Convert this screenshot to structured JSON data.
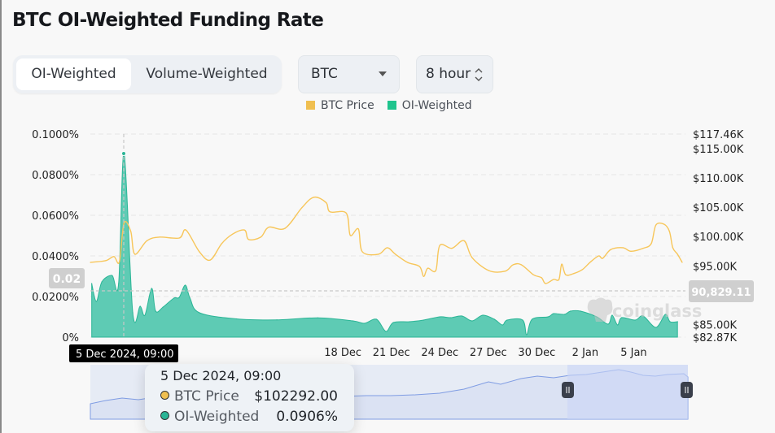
{
  "header": {
    "title": "BTC OI-Weighted Funding Rate"
  },
  "controls": {
    "tabs": [
      {
        "label": "OI-Weighted",
        "active": true
      },
      {
        "label": "Volume-Weighted",
        "active": false
      }
    ],
    "coin_select": {
      "value": "BTC"
    },
    "interval_select": {
      "value": "8 hour"
    }
  },
  "watermark": {
    "text": "coinglass"
  },
  "tooltip": {
    "date": "5 Dec 2024, 09:00",
    "rows": [
      {
        "label": "BTC Price",
        "value": "$102292.00",
        "color": "#f0bf50"
      },
      {
        "label": "OI-Weighted",
        "value": "0.0906%",
        "color": "#2bb596"
      }
    ]
  },
  "crosshair": {
    "x_label": "5 Dec 2024, 09:00",
    "y_left_label": "0.02",
    "y_right_label": "90,829.11"
  },
  "chart_data": {
    "type": "line+area",
    "legend": {
      "placement": "top-center",
      "entries": [
        {
          "name": "BTC Price",
          "color": "#f0bf50"
        },
        {
          "name": "OI-Weighted",
          "color": "#1fc48d"
        }
      ]
    },
    "xlim": [
      "2024-12-03 07:00",
      "2025-01-08 22:00"
    ],
    "x_ticks": [
      {
        "date": "2024-12-18",
        "label": "18 Dec"
      },
      {
        "date": "2024-12-21",
        "label": "21 Dec"
      },
      {
        "date": "2024-12-24",
        "label": "24 Dec"
      },
      {
        "date": "2024-12-27",
        "label": "27 Dec"
      },
      {
        "date": "2024-12-30",
        "label": "30 Dec"
      },
      {
        "date": "2025-01-02",
        "label": "2 Jan"
      },
      {
        "date": "2025-01-05",
        "label": "5 Jan"
      }
    ],
    "y_left": {
      "ylim": [
        0,
        0.1
      ],
      "ticks": [
        {
          "v": 0.1,
          "label": "0.1000%"
        },
        {
          "v": 0.08,
          "label": "0.0800%"
        },
        {
          "v": 0.06,
          "label": "0.0600%"
        },
        {
          "v": 0.04,
          "label": "0.0400%"
        },
        {
          "v": 0.02,
          "label": "0.0200%"
        },
        {
          "v": 0,
          "label": "0%"
        }
      ],
      "grid": true
    },
    "y_right": {
      "ylim": [
        82.87,
        117.46
      ],
      "unit": "K USD",
      "ticks": [
        {
          "v": 117.46,
          "label": "$117.46K"
        },
        {
          "v": 115,
          "label": "$115.00K"
        },
        {
          "v": 110,
          "label": "$110.00K"
        },
        {
          "v": 105,
          "label": "$105.00K"
        },
        {
          "v": 100,
          "label": "$100.00K"
        },
        {
          "v": 95,
          "label": "$95.00K"
        },
        {
          "v": 85,
          "label": "$85.00K"
        },
        {
          "v": 82.87,
          "label": "$82.87K"
        }
      ]
    },
    "series": [
      {
        "name": "BTC Price",
        "axis": "right",
        "type": "line",
        "color": "#f5c24c",
        "points": [
          [
            "2024-12-03 07:00",
            95.6
          ],
          [
            "2024-12-04 06:00",
            95.9
          ],
          [
            "2024-12-04 18:00",
            96.6
          ],
          [
            "2024-12-05 02:00",
            95.7
          ],
          [
            "2024-12-05 09:00",
            102.29
          ],
          [
            "2024-12-05 19:00",
            100.9
          ],
          [
            "2024-12-06 01:00",
            97.0
          ],
          [
            "2024-12-06 19:00",
            99.3
          ],
          [
            "2024-12-07 13:00",
            99.9
          ],
          [
            "2024-12-08 19:00",
            99.75
          ],
          [
            "2024-12-09 05:00",
            101.1
          ],
          [
            "2024-12-10 01:00",
            97.4
          ],
          [
            "2024-12-10 17:00",
            96.0
          ],
          [
            "2024-12-11 10:00",
            98.8
          ],
          [
            "2024-12-12 02:00",
            100.4
          ],
          [
            "2024-12-12 20:00",
            101.1
          ],
          [
            "2024-12-13 02:00",
            99.5
          ],
          [
            "2024-12-13 20:00",
            99.9
          ],
          [
            "2024-12-14 08:00",
            101.6
          ],
          [
            "2024-12-15 08:00",
            101.4
          ],
          [
            "2024-12-16 09:00",
            104.9
          ],
          [
            "2024-12-17 03:00",
            106.7
          ],
          [
            "2024-12-17 21:00",
            105.8
          ],
          [
            "2024-12-18 03:00",
            104.2
          ],
          [
            "2024-12-19 03:00",
            104.0
          ],
          [
            "2024-12-19 09:00",
            100.2
          ],
          [
            "2024-12-19 21:00",
            101.3
          ],
          [
            "2024-12-20 03:00",
            97.4
          ],
          [
            "2024-12-21 03:00",
            97.0
          ],
          [
            "2024-12-21 16:00",
            98.1
          ],
          [
            "2024-12-22 04:00",
            97.0
          ],
          [
            "2024-12-22 22:00",
            95.6
          ],
          [
            "2024-12-23 16:00",
            94.9
          ],
          [
            "2024-12-23 22:00",
            93.2
          ],
          [
            "2024-12-24 04:00",
            94.6
          ],
          [
            "2024-12-24 16:00",
            94.2
          ],
          [
            "2024-12-24 22:00",
            98.5
          ],
          [
            "2024-12-25 16:00",
            98.0
          ],
          [
            "2024-12-26 10:00",
            99.3
          ],
          [
            "2024-12-26 22:00",
            96.4
          ],
          [
            "2024-12-27 23:00",
            94.2
          ],
          [
            "2024-12-28 23:00",
            94.1
          ],
          [
            "2024-12-29 11:00",
            95.2
          ],
          [
            "2024-12-29 23:00",
            95.2
          ],
          [
            "2024-12-30 17:00",
            93.5
          ],
          [
            "2024-12-31 05:00",
            93.0
          ],
          [
            "2024-12-31 11:00",
            92.0
          ],
          [
            "2024-12-31 23:00",
            92.7
          ],
          [
            "2025-01-01 07:00",
            92.7
          ],
          [
            "2025-01-01 11:00",
            95.3
          ],
          [
            "2025-01-01 17:00",
            93.5
          ],
          [
            "2025-01-02 05:00",
            93.7
          ],
          [
            "2025-01-02 18:00",
            94.4
          ],
          [
            "2025-01-03 06:00",
            95.7
          ],
          [
            "2025-01-03 18:00",
            96.7
          ],
          [
            "2025-01-04 00:00",
            96.3
          ],
          [
            "2025-01-04 12:00",
            97.8
          ],
          [
            "2025-01-05 06:00",
            98.1
          ],
          [
            "2025-01-05 18:00",
            97.5
          ],
          [
            "2025-01-06 12:00",
            98.0
          ],
          [
            "2025-01-07 00:00",
            98.8
          ],
          [
            "2025-01-07 07:00",
            101.97
          ],
          [
            "2025-01-07 19:00",
            102.1
          ],
          [
            "2025-01-08 03:00",
            100.9
          ],
          [
            "2025-01-08 08:00",
            98.1
          ],
          [
            "2025-01-08 15:00",
            97.0
          ],
          [
            "2025-01-08 22:00",
            95.6
          ]
        ]
      },
      {
        "name": "OI-Weighted",
        "axis": "left",
        "type": "area",
        "color": "#5ecbb4",
        "unit": "%",
        "points": [
          [
            "2024-12-03 09:00",
            0.0264
          ],
          [
            "2024-12-03 16:00",
            0.0176
          ],
          [
            "2024-12-04 00:00",
            0.0272
          ],
          [
            "2024-12-04 15:00",
            0.0304
          ],
          [
            "2024-12-05 01:00",
            0.0264
          ],
          [
            "2024-12-05 09:00",
            0.0906
          ],
          [
            "2024-12-05 22:00",
            0.012
          ],
          [
            "2024-12-06 09:00",
            0.0152
          ],
          [
            "2024-12-06 16:00",
            0.0108
          ],
          [
            "2024-12-07 02:00",
            0.024
          ],
          [
            "2024-12-07 08:00",
            0.0128
          ],
          [
            "2024-12-07 19:00",
            0.0148
          ],
          [
            "2024-12-08 11:00",
            0.0192
          ],
          [
            "2024-12-08 19:00",
            0.0196
          ],
          [
            "2024-12-09 04:00",
            0.0256
          ],
          [
            "2024-12-09 11:00",
            0.0192
          ],
          [
            "2024-12-10 01:00",
            0.012
          ],
          [
            "2024-12-12 08:00",
            0.009
          ],
          [
            "2024-12-14 20:00",
            0.0085
          ],
          [
            "2024-12-17 09:00",
            0.0095
          ],
          [
            "2024-12-19 13:00",
            0.008
          ],
          [
            "2024-12-20 06:00",
            0.0068
          ],
          [
            "2024-12-21 00:00",
            0.0088
          ],
          [
            "2024-12-21 14:00",
            0.0028
          ],
          [
            "2024-12-22 01:00",
            0.0072
          ],
          [
            "2024-12-23 01:00",
            0.0076
          ],
          [
            "2024-12-23 22:00",
            0.0084
          ],
          [
            "2024-12-24 22:00",
            0.01
          ],
          [
            "2024-12-25 14:00",
            0.0096
          ],
          [
            "2024-12-26 07:00",
            0.0104
          ],
          [
            "2024-12-26 22:00",
            0.008
          ],
          [
            "2024-12-27 14:00",
            0.0108
          ],
          [
            "2024-12-28 07:00",
            0.0088
          ],
          [
            "2024-12-28 19:00",
            0.006
          ],
          [
            "2024-12-29 02:00",
            0.0084
          ],
          [
            "2024-12-30 01:00",
            0.0084
          ],
          [
            "2024-12-30 07:00",
            0.0012
          ],
          [
            "2024-12-30 15:00",
            0.0088
          ],
          [
            "2024-12-31 15:00",
            0.01
          ],
          [
            "2024-12-31 23:00",
            0.0116
          ],
          [
            "2025-01-01 15:00",
            0.0112
          ],
          [
            "2025-01-02 00:00",
            0.0128
          ],
          [
            "2025-01-02 15:00",
            0.0128
          ],
          [
            "2025-01-03 15:00",
            0.01
          ],
          [
            "2025-01-04 08:00",
            0.0064
          ],
          [
            "2025-01-04 14:00",
            0.0108
          ],
          [
            "2025-01-04 22:00",
            0.006
          ],
          [
            "2025-01-05 04:00",
            0.0096
          ],
          [
            "2025-01-06 00:00",
            0.0084
          ],
          [
            "2025-01-06 12:00",
            0.0104
          ],
          [
            "2025-01-07 07:00",
            0.0048
          ],
          [
            "2025-01-07 21:00",
            0.0112
          ],
          [
            "2025-01-08 04:00",
            0.0076
          ],
          [
            "2025-01-08 15:00",
            0.0076
          ]
        ]
      }
    ]
  }
}
